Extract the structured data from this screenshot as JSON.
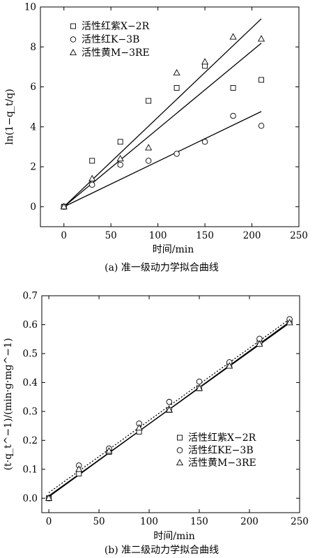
{
  "chart_data": [
    {
      "type": "scatter",
      "caption": "(a) 准一级动力学拟合曲线",
      "xlabel": "时间/min",
      "ylabel": "ln(1−q_t/q)",
      "xlim": [
        -25,
        250
      ],
      "ylim": [
        -1,
        10
      ],
      "xticks": [
        0,
        50,
        100,
        150,
        200,
        250
      ],
      "yticks": [
        0,
        2,
        4,
        6,
        8,
        10
      ],
      "legend_position": "top-left",
      "series": [
        {
          "name": "活性红紫X−2R",
          "marker": "square",
          "x": [
            0,
            30,
            60,
            90,
            120,
            150,
            180,
            210
          ],
          "y": [
            0,
            2.3,
            3.25,
            5.3,
            5.95,
            7.05,
            5.95,
            6.35
          ],
          "fit_slope": 0.0448
        },
        {
          "name": "活性红K−3B",
          "marker": "circle",
          "x": [
            0,
            30,
            60,
            90,
            120,
            150,
            180,
            210
          ],
          "y": [
            0,
            1.1,
            2.1,
            2.3,
            2.65,
            3.25,
            4.55,
            4.05
          ],
          "fit_slope": 0.0227
        },
        {
          "name": "活性黄M−3RE",
          "marker": "triangle",
          "x": [
            0,
            30,
            60,
            90,
            120,
            150,
            180,
            210
          ],
          "y": [
            0,
            1.4,
            2.4,
            2.95,
            6.7,
            7.25,
            8.5,
            8.4
          ],
          "fit_slope": 0.039
        }
      ]
    },
    {
      "type": "scatter",
      "caption": "(b) 准二级动力学拟合曲线",
      "xlabel": "时间/min",
      "ylabel": "(t·q_t^−1)/(min·g·mg^−1)",
      "xlim": [
        -7,
        250
      ],
      "ylim": [
        -0.05,
        0.7
      ],
      "xticks": [
        0,
        50,
        100,
        150,
        200,
        250
      ],
      "yticks": [
        0.0,
        0.1,
        0.2,
        0.3,
        0.4,
        0.5,
        0.6,
        0.7
      ],
      "legend_position": "bottom-right",
      "series": [
        {
          "name": "活性红紫X−2R",
          "marker": "square",
          "x": [
            0,
            30,
            60,
            90,
            120,
            150,
            180,
            210,
            240
          ],
          "y": [
            0.0,
            0.085,
            0.16,
            0.23,
            0.305,
            0.38,
            0.458,
            0.535,
            0.612
          ],
          "fit": [
            0.005,
            0.00252
          ],
          "line_style": "solid"
        },
        {
          "name": "活性红KE−3B",
          "marker": "circle",
          "x": [
            0,
            30,
            60,
            90,
            120,
            150,
            180,
            210,
            240
          ],
          "y": [
            0.0,
            0.113,
            0.172,
            0.258,
            0.333,
            0.403,
            0.47,
            0.551,
            0.619
          ],
          "fit": [
            0.019,
            0.0025
          ],
          "line_style": "dotted"
        },
        {
          "name": "活性黄M−3RE",
          "marker": "triangle",
          "x": [
            0,
            30,
            60,
            90,
            120,
            150,
            180,
            210,
            240
          ],
          "y": [
            0.0,
            0.1,
            0.163,
            0.243,
            0.305,
            0.38,
            0.457,
            0.533,
            0.607
          ],
          "fit": [
            0.008,
            0.00249
          ],
          "line_style": "solid"
        }
      ]
    }
  ]
}
